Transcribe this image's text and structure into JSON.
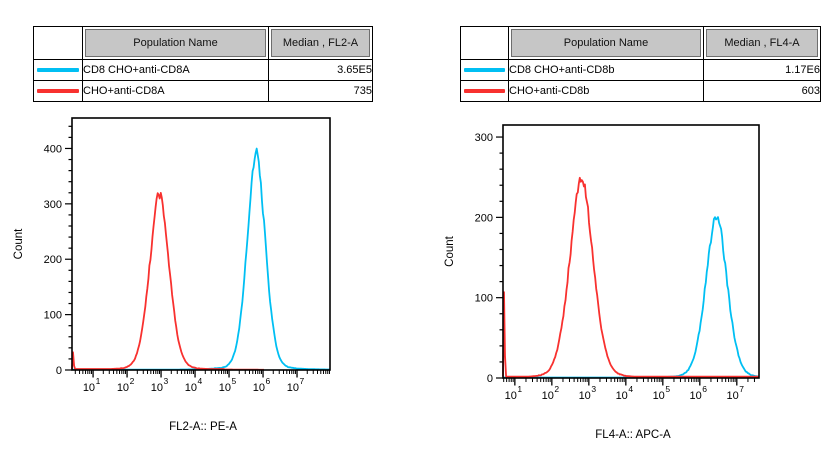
{
  "accent_colors": {
    "cyan_series": "#00BFF3",
    "red_series": "#F8312F",
    "table_header_bg": "#C6C6C6",
    "axis_color": "#000000"
  },
  "tables": [
    {
      "header": {
        "population": "Population Name",
        "median": "Median , FL2-A"
      },
      "rows": [
        {
          "swatch_color": "#00BFF3",
          "population": "CD8 CHO+anti-CD8A",
          "median": "3.65E5"
        },
        {
          "swatch_color": "#F8312F",
          "population": "CHO+anti-CD8A",
          "median": "735"
        }
      ]
    },
    {
      "header": {
        "population": "Population Name",
        "median": "Median , FL4-A"
      },
      "rows": [
        {
          "swatch_color": "#00BFF3",
          "population": "CD8 CHO+anti-CD8b",
          "median": "1.17E6"
        },
        {
          "swatch_color": "#F8312F",
          "population": "CHO+anti-CD8b",
          "median": "603"
        }
      ]
    }
  ],
  "chart_data": [
    {
      "type": "line",
      "subtype": "flow-cytometry-overlay-histogram",
      "title": "",
      "xlabel": "FL2-A:: PE-A",
      "ylabel": "Count",
      "x_scale": "log10",
      "x_range_log10": [
        0.38,
        7.97
      ],
      "x_major_tick_exponents": [
        1,
        2,
        3,
        4,
        5,
        6,
        7
      ],
      "ylim": [
        0,
        455
      ],
      "y_major_ticks": [
        0,
        100,
        200,
        300,
        400
      ],
      "y_minor_tick_step": 20,
      "grid": false,
      "legend_position": "none",
      "series": [
        {
          "name": "CD8 CHO+anti-CD8A",
          "color": "#00BFF3",
          "median": "3.65E5",
          "peak_log10_center": 5.8,
          "peak_sigma_log10": 0.28,
          "peak_height_count": 392,
          "edge_spike_count": 0,
          "baseline_count": 0.6,
          "baseline_support_log10": [
            0.38,
            7.97
          ]
        },
        {
          "name": "CHO+anti-CD8A",
          "color": "#F8312F",
          "median": "735",
          "peak_log10_center": 2.95,
          "peak_sigma_log10": 0.3,
          "peak_height_count": 318,
          "edge_spike_count": 33,
          "baseline_count": 1.8,
          "baseline_support_log10": [
            0.38,
            4.85
          ]
        }
      ]
    },
    {
      "type": "line",
      "subtype": "flow-cytometry-overlay-histogram",
      "title": "",
      "xlabel": "FL4-A:: APC-A",
      "ylabel": "Count",
      "x_scale": "log10",
      "x_range_log10": [
        0.68,
        7.6
      ],
      "x_major_tick_exponents": [
        1,
        2,
        3,
        4,
        5,
        6,
        7
      ],
      "ylim": [
        0,
        315
      ],
      "y_major_ticks": [
        0,
        100,
        200,
        300
      ],
      "y_minor_tick_step": 20,
      "grid": false,
      "legend_position": "none",
      "series": [
        {
          "name": "CD8 CHO+anti-CD8b",
          "color": "#00BFF3",
          "median": "1.17E6",
          "peak_log10_center": 6.45,
          "peak_sigma_log10": 0.3,
          "peak_height_count": 203,
          "edge_spike_count": 0,
          "baseline_count": 0.6,
          "baseline_support_log10": [
            0.68,
            7.6
          ]
        },
        {
          "name": "CHO+anti-CD8b",
          "color": "#F8312F",
          "median": "603",
          "peak_log10_center": 2.8,
          "peak_sigma_log10": 0.33,
          "peak_height_count": 250,
          "edge_spike_count": 108,
          "baseline_count": 1.8,
          "baseline_support_log10": [
            0.68,
            7.6
          ]
        }
      ]
    }
  ]
}
